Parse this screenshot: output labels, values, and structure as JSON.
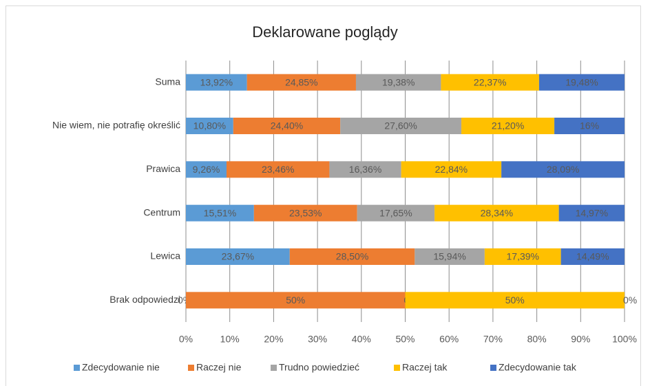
{
  "chart_data": {
    "type": "stacked_barh",
    "title": "Deklarowane poglądy",
    "categories": [
      "Suma",
      "Nie wiem, nie potrafię określić",
      "Prawica",
      "Centrum",
      "Lewica",
      "Brak odpowiedzi"
    ],
    "series": [
      {
        "name": "Zdecydowanie nie",
        "color": "#5b9bd5",
        "values": [
          13.92,
          10.8,
          9.26,
          15.51,
          23.67,
          0
        ],
        "value_labels": [
          "13,92%",
          "10,80%",
          "9,26%",
          "15,51%",
          "23,67%",
          "0%"
        ]
      },
      {
        "name": "Raczej nie",
        "color": "#ed7d31",
        "values": [
          24.85,
          24.4,
          23.46,
          23.53,
          28.5,
          50
        ],
        "value_labels": [
          "24,85%",
          "24,40%",
          "23,46%",
          "23,53%",
          "28,50%",
          "50%"
        ]
      },
      {
        "name": "Trudno powiedzieć",
        "color": "#a5a5a5",
        "values": [
          19.38,
          27.6,
          16.36,
          17.65,
          15.94,
          0
        ],
        "value_labels": [
          "19,38%",
          "27,60%",
          "16,36%",
          "17,65%",
          "15,94%",
          "0%"
        ]
      },
      {
        "name": "Raczej tak",
        "color": "#ffc000",
        "values": [
          22.37,
          21.2,
          22.84,
          28.34,
          17.39,
          50
        ],
        "value_labels": [
          "22,37%",
          "21,20%",
          "22,84%",
          "28,34%",
          "17,39%",
          "50%"
        ]
      },
      {
        "name": "Zdecydowanie tak",
        "color": "#4472c4",
        "values": [
          19.48,
          16,
          28.09,
          14.97,
          14.49,
          0
        ],
        "value_labels": [
          "19,48%",
          "16%",
          "28,09%",
          "14,97%",
          "14,49%",
          "0%"
        ]
      }
    ],
    "xlim": [
      0,
      100
    ],
    "xticks": [
      {
        "value": 0,
        "label": "0%"
      },
      {
        "value": 10,
        "label": "10%"
      },
      {
        "value": 20,
        "label": "20%"
      },
      {
        "value": 30,
        "label": "30%"
      },
      {
        "value": 40,
        "label": "40%"
      },
      {
        "value": 50,
        "label": "50%"
      },
      {
        "value": 60,
        "label": "60%"
      },
      {
        "value": 70,
        "label": "70%"
      },
      {
        "value": 80,
        "label": "80%"
      },
      {
        "value": 90,
        "label": "90%"
      },
      {
        "value": 100,
        "label": "100%"
      }
    ],
    "grid": true,
    "legend": "bottom"
  }
}
